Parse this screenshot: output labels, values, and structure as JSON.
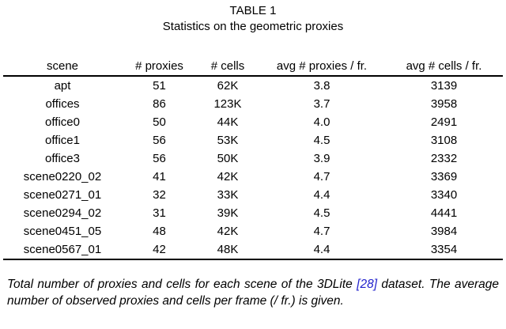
{
  "colors": {
    "citation": "#2323cd",
    "text": "#000000",
    "background": "#ffffff"
  },
  "title": {
    "table_number": "TABLE 1",
    "subtitle": "Statistics on the geometric proxies"
  },
  "table": {
    "headers": [
      "scene",
      "# proxies",
      "# cells",
      "avg # proxies / fr.",
      "avg # cells / fr."
    ],
    "col_names": [
      "cell-scene",
      "cell-num-proxies",
      "cell-num-cells",
      "cell-avg-proxies-per-frame",
      "cell-avg-cells-per-frame"
    ],
    "rows": [
      [
        "apt",
        "51",
        "62K",
        "3.8",
        "3139"
      ],
      [
        "offices",
        "86",
        "123K",
        "3.7",
        "3958"
      ],
      [
        "office0",
        "50",
        "44K",
        "4.0",
        "2491"
      ],
      [
        "office1",
        "56",
        "53K",
        "4.5",
        "3108"
      ],
      [
        "office3",
        "56",
        "50K",
        "3.9",
        "2332"
      ],
      [
        "scene0220_02",
        "41",
        "42K",
        "4.7",
        "3369"
      ],
      [
        "scene0271_01",
        "32",
        "33K",
        "4.4",
        "3340"
      ],
      [
        "scene0294_02",
        "31",
        "39K",
        "4.5",
        "4441"
      ],
      [
        "scene0451_05",
        "48",
        "42K",
        "4.7",
        "3984"
      ],
      [
        "scene0567_01",
        "42",
        "48K",
        "4.4",
        "3354"
      ]
    ]
  },
  "chart_data": {
    "type": "table",
    "title": "TABLE 1: Statistics on the geometric proxies",
    "columns": [
      "scene",
      "# proxies",
      "# cells",
      "avg # proxies / fr.",
      "avg # cells / fr."
    ],
    "rows": [
      [
        "apt",
        51,
        "62K",
        3.8,
        3139
      ],
      [
        "offices",
        86,
        "123K",
        3.7,
        3958
      ],
      [
        "office0",
        50,
        "44K",
        4.0,
        2491
      ],
      [
        "office1",
        56,
        "53K",
        4.5,
        3108
      ],
      [
        "office3",
        56,
        "50K",
        3.9,
        2332
      ],
      [
        "scene0220_02",
        41,
        "42K",
        4.7,
        3369
      ],
      [
        "scene0271_01",
        32,
        "33K",
        4.4,
        3340
      ],
      [
        "scene0294_02",
        31,
        "39K",
        4.5,
        4441
      ],
      [
        "scene0451_05",
        48,
        "42K",
        4.7,
        3984
      ],
      [
        "scene0567_01",
        42,
        "48K",
        4.4,
        3354
      ]
    ]
  },
  "caption": {
    "part1": "Total number of proxies and cells for each scene of the 3DLite ",
    "citation": "[28]",
    "part2": " dataset. The average number of observed proxies and cells per frame (/ fr.) is given."
  }
}
